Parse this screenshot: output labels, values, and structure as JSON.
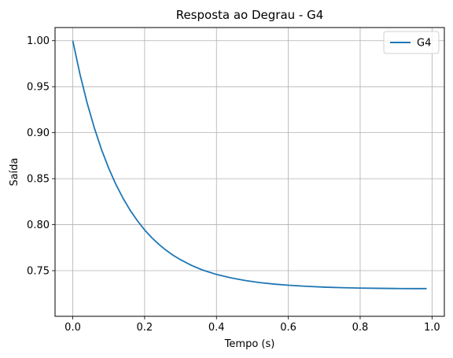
{
  "chart_data": {
    "type": "line",
    "title": "Resposta ao Degrau - G4",
    "xlabel": "Tempo (s)",
    "ylabel": "Saída",
    "xlim": [
      -0.0493,
      1.0343
    ],
    "ylim": [
      0.7004,
      1.0143
    ],
    "xticks": [
      0.0,
      0.2,
      0.4,
      0.6,
      0.8,
      1.0
    ],
    "xtick_labels": [
      "0.0",
      "0.2",
      "0.4",
      "0.6",
      "0.8",
      "1.0"
    ],
    "yticks": [
      0.75,
      0.8,
      0.85,
      0.9,
      0.95,
      1.0
    ],
    "ytick_labels": [
      "0.75",
      "0.80",
      "0.85",
      "0.90",
      "0.95",
      "1.00"
    ],
    "grid": true,
    "legend_position": "top-right",
    "colors": {
      "series": "#1f77b4",
      "grid": "#b0b0b0",
      "axes": "#000000"
    },
    "series": [
      {
        "name": "G4",
        "x": [
          0.0,
          0.02,
          0.04,
          0.06,
          0.08,
          0.1,
          0.12,
          0.14,
          0.16,
          0.18,
          0.2,
          0.22,
          0.24,
          0.26,
          0.28,
          0.3,
          0.33,
          0.36,
          0.4,
          0.44,
          0.48,
          0.52,
          0.56,
          0.6,
          0.65,
          0.7,
          0.75,
          0.8,
          0.85,
          0.9,
          0.95,
          0.985
        ],
        "y": [
          1.0,
          0.9637,
          0.9323,
          0.9052,
          0.8817,
          0.8614,
          0.8438,
          0.8287,
          0.8155,
          0.8042,
          0.7943,
          0.7858,
          0.7785,
          0.7721,
          0.7666,
          0.7619,
          0.7558,
          0.7509,
          0.7459,
          0.7422,
          0.7393,
          0.7371,
          0.7354,
          0.7342,
          0.733,
          0.7321,
          0.7315,
          0.7311,
          0.7308,
          0.7306,
          0.7305,
          0.7305
        ]
      }
    ]
  }
}
